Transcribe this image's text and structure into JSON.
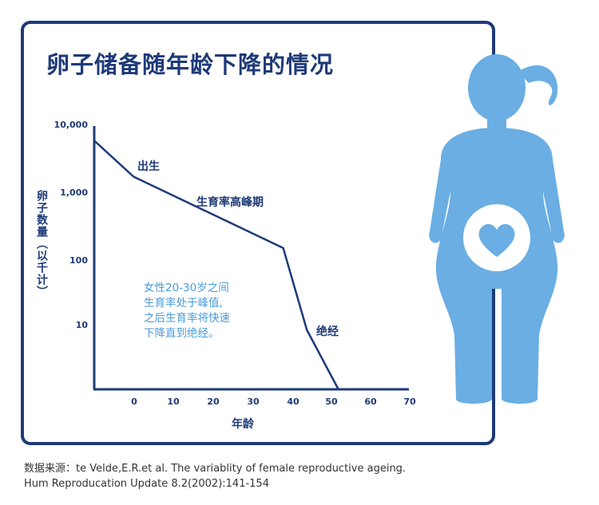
{
  "title": "卵子储备随年龄下降的情况",
  "colors": {
    "frame": "#1e3a78",
    "figure": "#6aaee3",
    "note": "#4a9ad8"
  },
  "chart_data": {
    "type": "line",
    "ylabel": "卵子数量（以千计）",
    "xlabel": "年龄",
    "yscale": "log",
    "ylim": [
      1,
      10000
    ],
    "xlim": [
      -10,
      70
    ],
    "yticks": [
      "10,000",
      "1,000",
      "100",
      "10"
    ],
    "ytick_values": [
      10000,
      1000,
      100,
      10
    ],
    "xticks": [
      "0",
      "10",
      "20",
      "30",
      "40",
      "50",
      "60",
      "70"
    ],
    "xtick_values": [
      0,
      10,
      20,
      30,
      40,
      50,
      60,
      70
    ],
    "series": [
      {
        "x": [
          -10,
          0,
          38,
          44,
          52
        ],
        "y": [
          6000,
          1700,
          140,
          8,
          1
        ]
      }
    ],
    "annotations": [
      "出生",
      "生育率高峰期",
      "绝经"
    ],
    "note": [
      "女性20-30岁之间",
      "生育率处于峰值,",
      "之后生育率将快速",
      "下降直到绝经。"
    ]
  },
  "source": [
    "数据来源：te Velde,E.R.et al. The variablity of female reproductive ageing.",
    "Hum Reproducation Update 8.2(2002):141-154"
  ],
  "icons": {
    "figure": "woman-silhouette-icon",
    "heart": "heart-icon"
  }
}
